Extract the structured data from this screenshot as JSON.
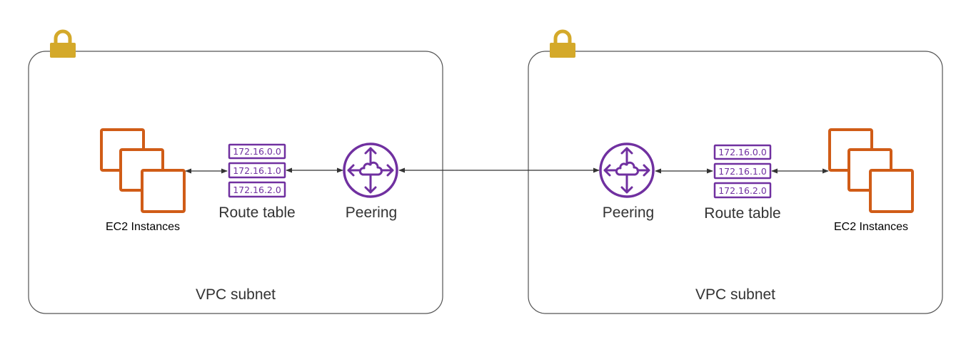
{
  "vpcs": [
    {
      "subnet_label": "VPC subnet",
      "ec2_label": "EC2 Instances",
      "route_table_label": "Route table",
      "route_entries": [
        "172.16.0.0",
        "172.16.1.0",
        "172.16.2.0"
      ],
      "peering_label": "Peering",
      "icons": [
        "lock-icon",
        "ec2-instances-icon",
        "route-table-icon",
        "peering-icon"
      ]
    },
    {
      "subnet_label": "VPC subnet",
      "ec2_label": "EC2 Instances",
      "route_table_label": "Route table",
      "route_entries": [
        "172.16.0.0",
        "172.16.1.0",
        "172.16.2.0"
      ],
      "peering_label": "Peering",
      "icons": [
        "lock-icon",
        "ec2-instances-icon",
        "route-table-icon",
        "peering-icon"
      ]
    }
  ],
  "colors": {
    "ec2": "#D05C17",
    "route_table": "#7030A0",
    "peering": "#7030A0",
    "lock": "#D4A92A",
    "border": "#545454",
    "connector": "#333333"
  }
}
